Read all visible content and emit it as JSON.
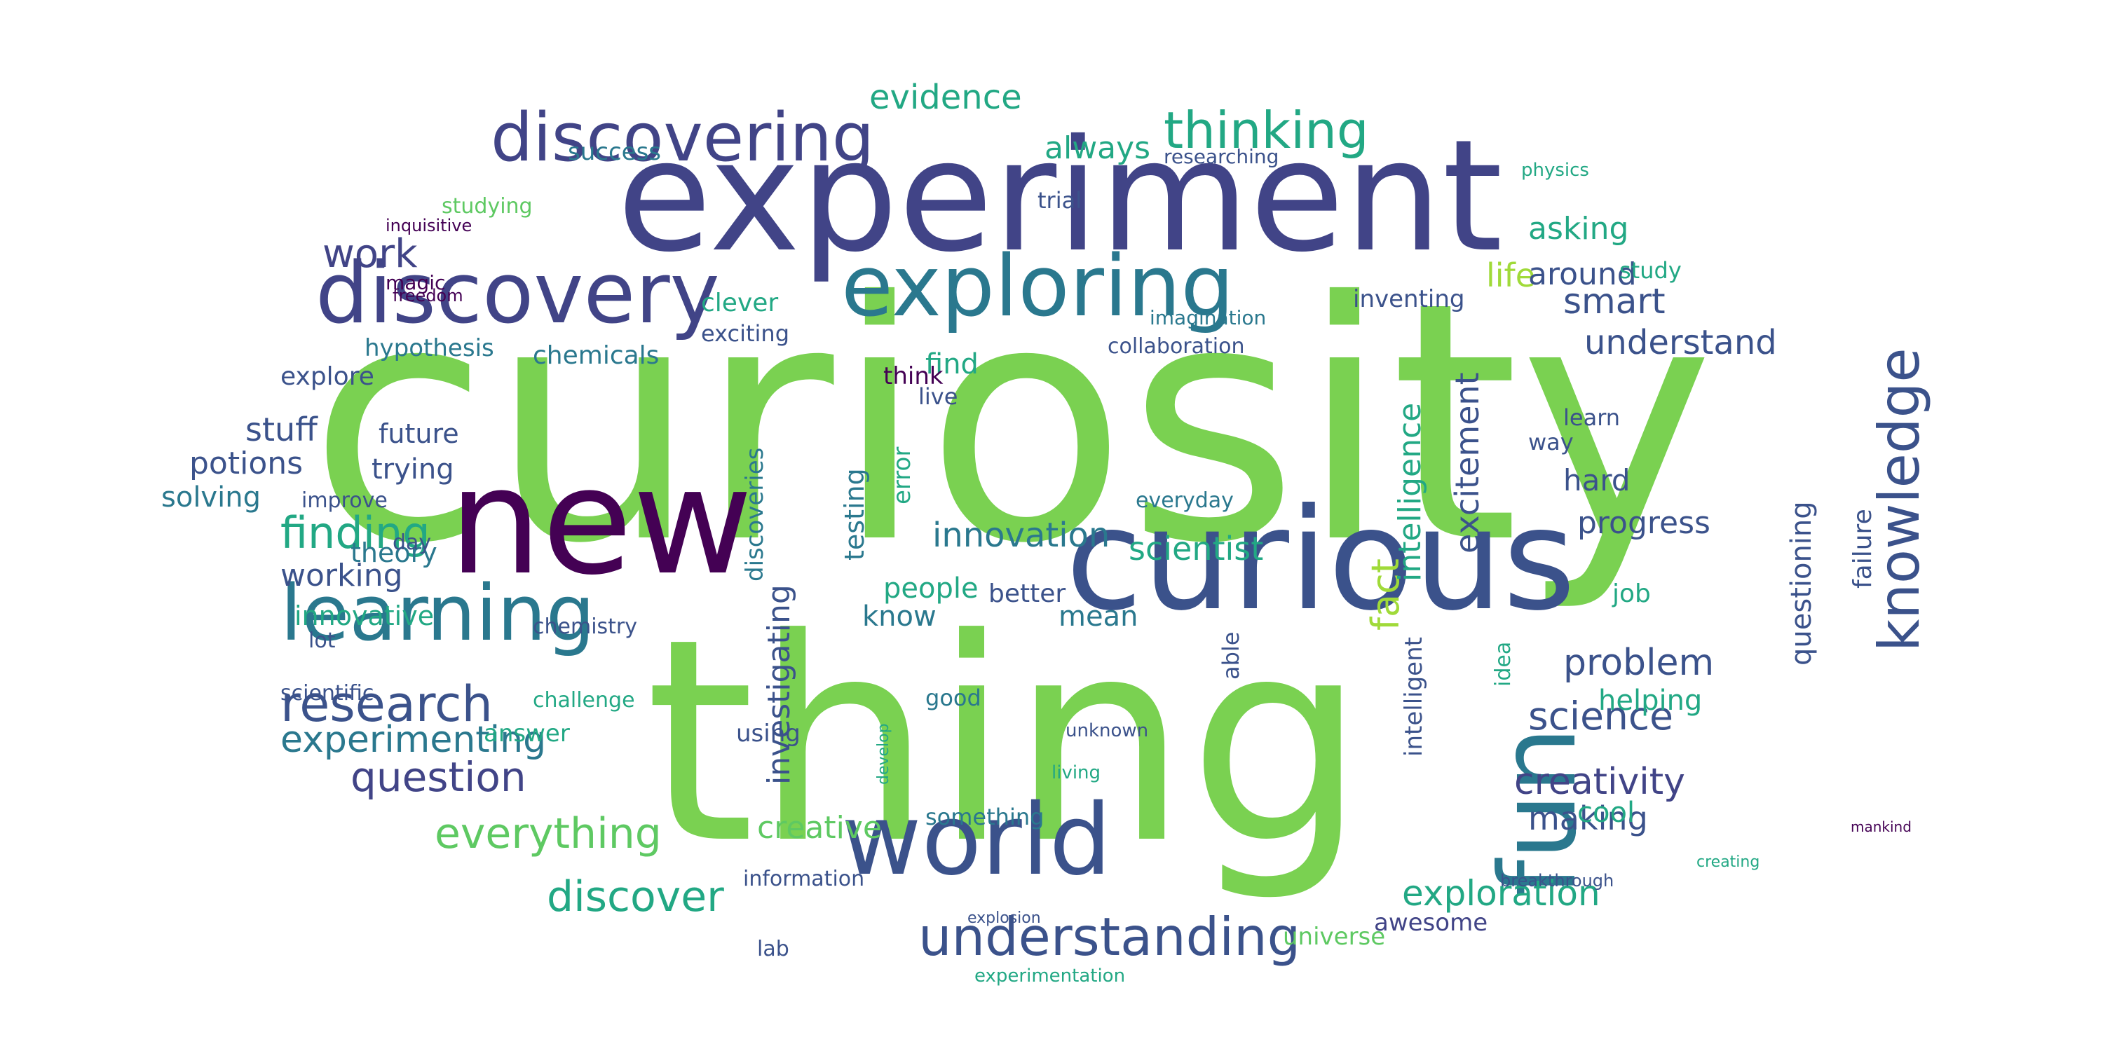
{
  "wordcloud": {
    "palette": {
      "green": "#7ad151",
      "teal": "#22a884",
      "cyan": "#2a788e",
      "blue": "#414487",
      "indigo": "#3b528b",
      "violet": "#440154",
      "lime": "#a0da39",
      "mint": "#5ec962",
      "navy": "#31688e"
    },
    "words": [
      "curiosity",
      "thing",
      "experiment",
      "new",
      "curious",
      "world",
      "discovery",
      "fun",
      "exploring",
      "learning",
      "discovering",
      "understanding",
      "knowledge",
      "thinking",
      "research",
      "finding",
      "discover",
      "everything",
      "question",
      "experimenting",
      "science",
      "creativity",
      "exploration",
      "innovation",
      "excitement",
      "work",
      "problem",
      "understand",
      "smart",
      "evidence",
      "scientist",
      "progress",
      "investigating",
      "fact",
      "intelligence",
      "life",
      "working",
      "making",
      "creative",
      "asking",
      "always",
      "around",
      "questioning",
      "stuff",
      "potions",
      "solving",
      "people",
      "know",
      "find",
      "helping",
      "testing",
      "trying",
      "theory",
      "future",
      "hypothesis",
      "explore",
      "chemicals",
      "success",
      "studying",
      "discoveries",
      "innovative",
      "job",
      "answer",
      "universe",
      "mean",
      "good",
      "awesome",
      "hard",
      "cool",
      "failure",
      "better",
      "something",
      "lab",
      "using",
      "inventing",
      "intelligent",
      "trial",
      "clever",
      "exciting",
      "collaboration",
      "imagination",
      "researching",
      "information",
      "challenge",
      "improve",
      "live",
      "able",
      "lot",
      "think",
      "error",
      "day",
      "learn",
      "idea",
      "way",
      "study",
      "physics",
      "magic",
      "inquisitive",
      "freedom",
      "everyday",
      "mankind",
      "creating",
      "breakthrough",
      "chemistry",
      "scientific",
      "experimentation",
      "explosion",
      "living",
      "unknown",
      "develop"
    ]
  }
}
